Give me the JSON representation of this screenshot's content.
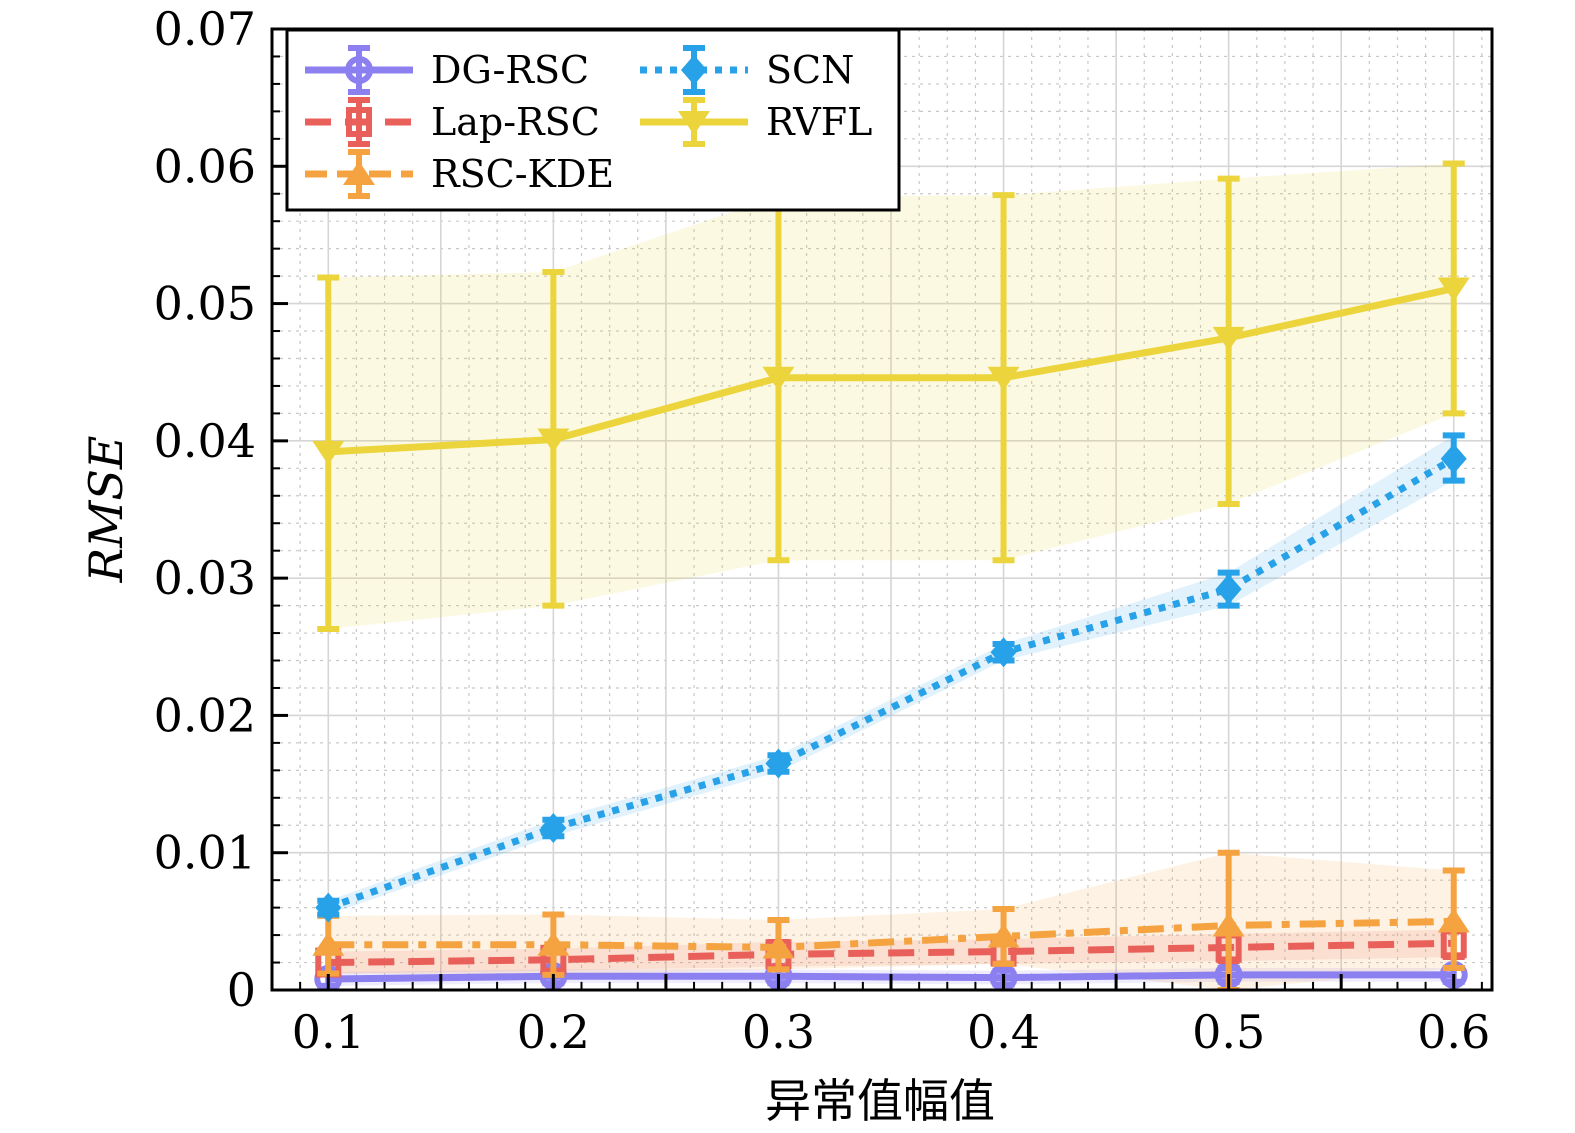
{
  "chart_data": {
    "type": "line",
    "title": "",
    "xlabel": "异常值幅值",
    "ylabel": "RMSE",
    "x": [
      0.1,
      0.2,
      0.3,
      0.4,
      0.5,
      0.6
    ],
    "xlim": [
      0.075,
      0.617
    ],
    "ylim": [
      0,
      0.07
    ],
    "xticks": [
      0.1,
      0.2,
      0.3,
      0.4,
      0.5,
      0.6
    ],
    "xtick_labels": [
      "0.1",
      "0.2",
      "0.3",
      "0.4",
      "0.5",
      "0.6"
    ],
    "yticks": [
      0,
      0.01,
      0.02,
      0.03,
      0.04,
      0.05,
      0.06,
      0.07
    ],
    "ytick_labels": [
      "0",
      "0.01",
      "0.02",
      "0.03",
      "0.04",
      "0.05",
      "0.06",
      "0.07"
    ],
    "grid": true,
    "legend_position": "top-left",
    "series": [
      {
        "name": "DG-RSC",
        "color": "#8c7ff0",
        "linestyle": "solid",
        "marker": "circle",
        "values": [
          0.0008,
          0.001,
          0.001,
          0.0009,
          0.0011,
          0.0011
        ],
        "lower": [
          0.0003,
          0.0005,
          0.0005,
          0.0004,
          0.0006,
          0.0006
        ],
        "upper": [
          0.0013,
          0.0015,
          0.0015,
          0.0014,
          0.0016,
          0.0016
        ]
      },
      {
        "name": "Lap-RSC",
        "color": "#e9605a",
        "linestyle": "dashed",
        "marker": "square",
        "values": [
          0.002,
          0.0022,
          0.0026,
          0.0028,
          0.0031,
          0.0034
        ],
        "lower": [
          0.0012,
          0.0014,
          0.0017,
          0.0019,
          0.0021,
          0.0024
        ],
        "upper": [
          0.0028,
          0.003,
          0.0035,
          0.0037,
          0.0041,
          0.0044
        ]
      },
      {
        "name": "RSC-KDE",
        "color": "#f5a340",
        "linestyle": "dashdot",
        "marker": "triangle-up",
        "values": [
          0.0033,
          0.0033,
          0.0031,
          0.0039,
          0.0047,
          0.005
        ],
        "lower": [
          0.0012,
          0.0011,
          0.0015,
          0.0019,
          0.0,
          0.0016
        ],
        "upper": [
          0.0054,
          0.0055,
          0.0051,
          0.0059,
          0.01,
          0.0087
        ]
      },
      {
        "name": "SCN",
        "color": "#27a2e8",
        "linestyle": "dotted",
        "marker": "diamond",
        "values": [
          0.006,
          0.0118,
          0.0165,
          0.0246,
          0.0292,
          0.0387
        ],
        "lower": [
          0.0055,
          0.0112,
          0.0159,
          0.024,
          0.028,
          0.0371
        ],
        "upper": [
          0.0065,
          0.0124,
          0.0171,
          0.0252,
          0.0304,
          0.0404
        ]
      },
      {
        "name": "RVFL",
        "color": "#ecd43c",
        "linestyle": "solid",
        "marker": "triangle-down",
        "values": [
          0.0392,
          0.0401,
          0.0446,
          0.0446,
          0.0475,
          0.0511
        ],
        "lower": [
          0.0263,
          0.028,
          0.0313,
          0.0313,
          0.0354,
          0.042
        ],
        "upper": [
          0.0519,
          0.0523,
          0.0578,
          0.0579,
          0.0591,
          0.0602
        ]
      }
    ]
  }
}
